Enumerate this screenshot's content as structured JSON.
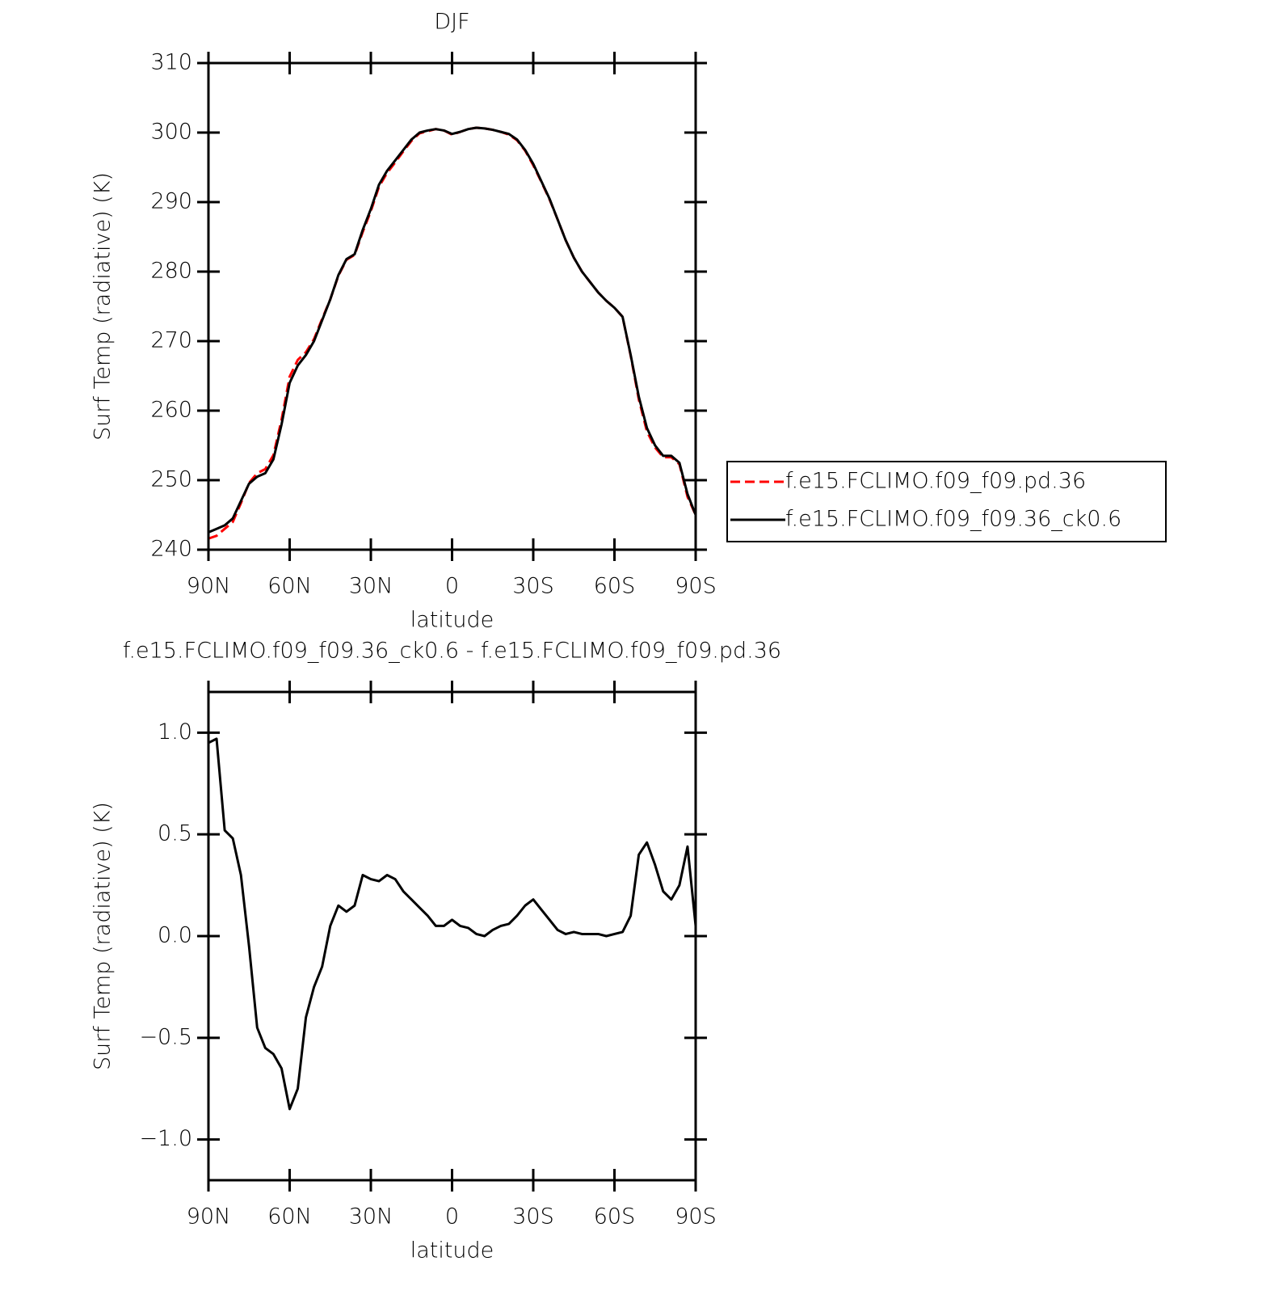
{
  "chart_data": [
    {
      "type": "line",
      "title": "DJF",
      "x_label": "latitude",
      "y_label": "Surf Temp (radiative) (K)",
      "x": [
        90,
        87,
        84,
        81,
        78,
        75,
        72,
        69,
        66,
        63,
        60,
        57,
        54,
        51,
        48,
        45,
        42,
        39,
        36,
        33,
        30,
        27,
        24,
        21,
        18,
        15,
        12,
        9,
        6,
        3,
        0,
        -3,
        -6,
        -9,
        -12,
        -15,
        -18,
        -21,
        -24,
        -27,
        -30,
        -33,
        -36,
        -39,
        -42,
        -45,
        -48,
        -51,
        -54,
        -57,
        -60,
        -63,
        -66,
        -69,
        -72,
        -75,
        -78,
        -81,
        -84,
        -87,
        -90
      ],
      "series": [
        {
          "name": "f.e15.FCLIMO.f09_f09.pd.36",
          "color": "#ff0000",
          "dashed": true,
          "values": [
            241.6,
            242.0,
            243.0,
            244.0,
            246.7,
            249.6,
            251.0,
            251.6,
            253.6,
            258.7,
            264.9,
            267.3,
            268.4,
            270.3,
            273.2,
            276.0,
            279.4,
            281.7,
            282.4,
            285.7,
            288.7,
            292.2,
            294.2,
            295.7,
            297.3,
            298.8,
            299.9,
            300.2,
            300.5,
            300.3,
            299.7,
            300.1,
            300.5,
            300.7,
            300.6,
            300.4,
            300.1,
            299.7,
            298.9,
            297.4,
            295.3,
            292.9,
            290.4,
            287.5,
            284.5,
            282.0,
            280.0,
            278.5,
            277.0,
            275.8,
            274.8,
            273.5,
            267.9,
            261.6,
            257.0,
            254.7,
            253.3,
            253.3,
            252.3,
            247.6,
            245.0
          ]
        },
        {
          "name": "f.e15.FCLIMO.f09_f09.36_ck0.6",
          "color": "#000000",
          "dashed": false,
          "values": [
            242.5,
            243.0,
            243.5,
            244.5,
            247,
            249.5,
            250.5,
            251,
            253,
            258,
            264,
            266.5,
            268,
            270,
            273,
            276,
            279.5,
            281.8,
            282.5,
            286,
            289,
            292.5,
            294.5,
            296,
            297.5,
            299,
            300,
            300.3,
            300.5,
            300.3,
            299.8,
            300.1,
            300.5,
            300.7,
            300.6,
            300.4,
            300.1,
            299.8,
            299,
            297.5,
            295.5,
            293,
            290.5,
            287.5,
            284.5,
            282,
            280,
            278.5,
            277,
            275.8,
            274.8,
            273.5,
            268,
            262,
            257.5,
            255,
            253.5,
            253.5,
            252.5,
            248,
            245
          ]
        }
      ],
      "xlim": [
        90,
        -90
      ],
      "xticks": [
        {
          "value": 90,
          "label": "90N"
        },
        {
          "value": 60,
          "label": "60N"
        },
        {
          "value": 30,
          "label": "30N"
        },
        0,
        {
          "value": -30,
          "label": "30S"
        },
        {
          "value": -60,
          "label": "60S"
        },
        {
          "value": -90,
          "label": "90S"
        }
      ],
      "ylim": [
        240,
        310
      ],
      "yticks": [
        240,
        250,
        260,
        270,
        280,
        290,
        300,
        310
      ],
      "legend": "right"
    },
    {
      "type": "line",
      "title": "f.e15.FCLIMO.f09_f09.36_ck0.6 - f.e15.FCLIMO.f09_f09.pd.36",
      "x_label": "latitude",
      "y_label": "Surf Temp (radiative) (K)",
      "x": [
        90,
        87,
        84,
        81,
        78,
        75,
        72,
        69,
        66,
        63,
        60,
        57,
        54,
        51,
        48,
        45,
        42,
        39,
        36,
        33,
        30,
        27,
        24,
        21,
        18,
        15,
        12,
        9,
        6,
        3,
        0,
        -3,
        -6,
        -9,
        -12,
        -15,
        -18,
        -21,
        -24,
        -27,
        -30,
        -33,
        -36,
        -39,
        -42,
        -45,
        -48,
        -51,
        -54,
        -57,
        -60,
        -63,
        -66,
        -69,
        -72,
        -75,
        -78,
        -81,
        -84,
        -87,
        -90
      ],
      "color": "#000000",
      "values": [
        0.95,
        0.97,
        0.52,
        0.48,
        0.3,
        -0.05,
        -0.45,
        -0.55,
        -0.58,
        -0.65,
        -0.85,
        -0.75,
        -0.4,
        -0.25,
        -0.15,
        0.05,
        0.15,
        0.12,
        0.15,
        0.3,
        0.28,
        0.27,
        0.3,
        0.28,
        0.22,
        0.18,
        0.14,
        0.1,
        0.05,
        0.05,
        0.08,
        0.05,
        0.04,
        0.01,
        0.0,
        0.03,
        0.05,
        0.06,
        0.1,
        0.15,
        0.18,
        0.13,
        0.08,
        0.03,
        0.01,
        0.02,
        0.01,
        0.01,
        0.01,
        0.0,
        0.01,
        0.02,
        0.1,
        0.4,
        0.46,
        0.35,
        0.22,
        0.18,
        0.25,
        0.44,
        0.05
      ],
      "xlim": [
        90,
        -90
      ],
      "xticks": [
        {
          "value": 90,
          "label": "90N"
        },
        {
          "value": 60,
          "label": "60N"
        },
        {
          "value": 30,
          "label": "30N"
        },
        0,
        {
          "value": -30,
          "label": "30S"
        },
        {
          "value": -60,
          "label": "60S"
        },
        {
          "value": -90,
          "label": "90S"
        }
      ],
      "ylim": [
        -1.2,
        1.2
      ],
      "yticks": [
        {
          "value": -1,
          "label": "−1.0"
        },
        {
          "value": -0.5,
          "label": "−0.5"
        },
        {
          "value": 0,
          "label": "0.0"
        },
        0.5,
        {
          "value": 1,
          "label": "1.0"
        }
      ]
    }
  ]
}
